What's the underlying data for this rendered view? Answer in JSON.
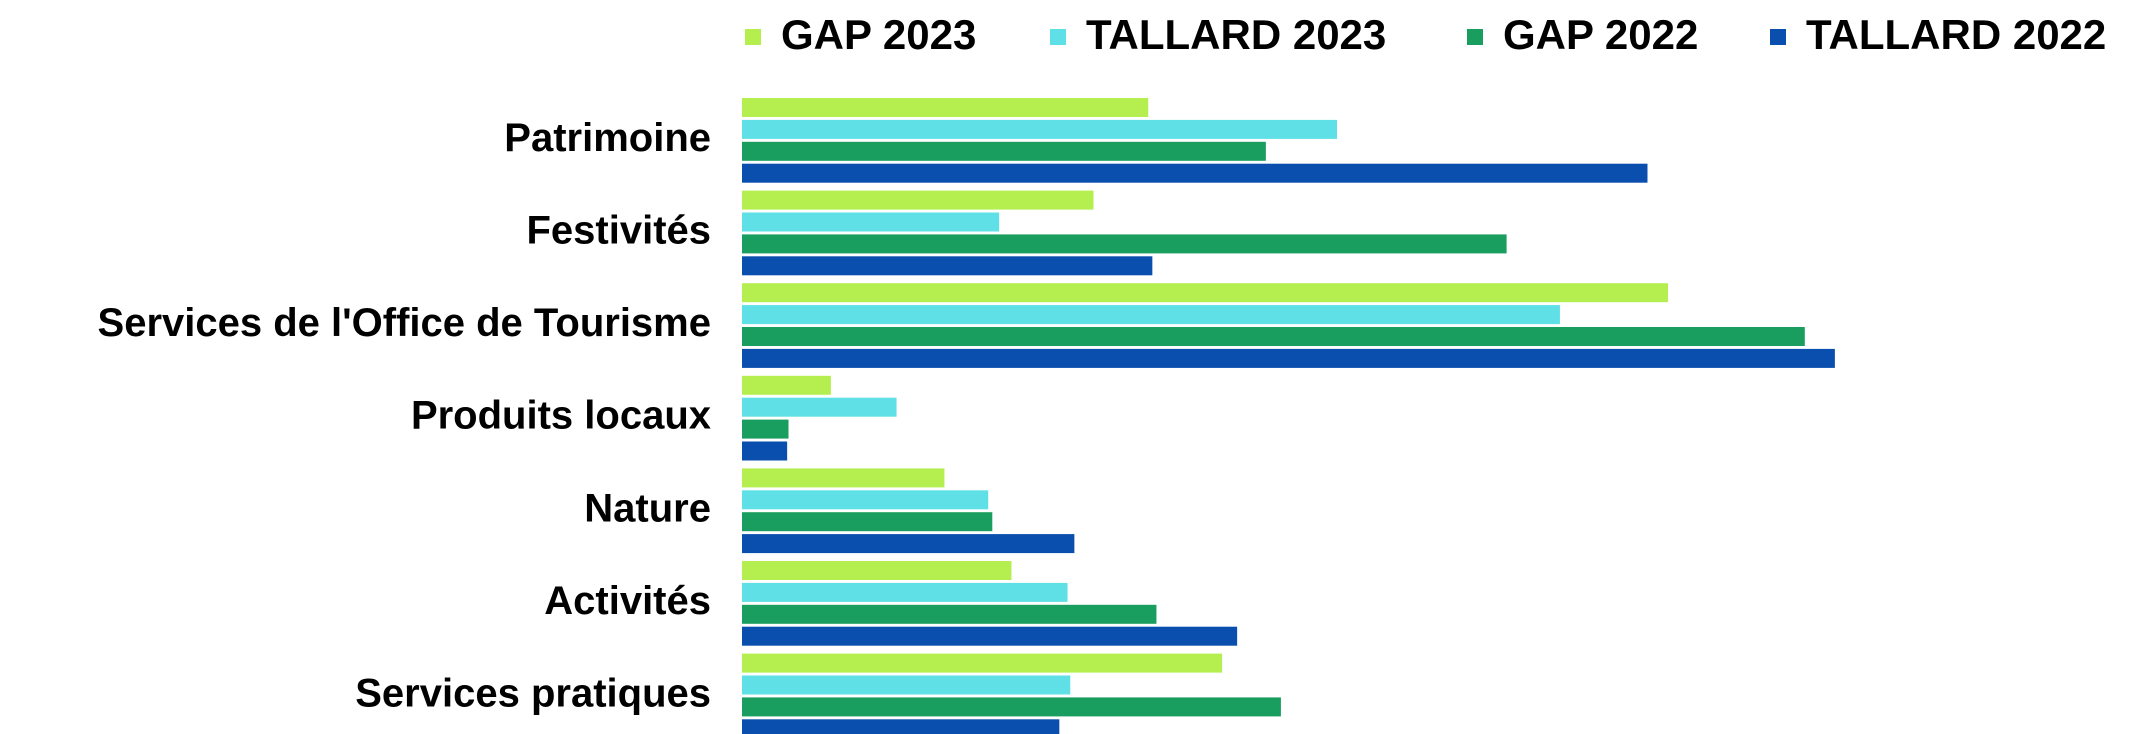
{
  "chart_data": {
    "type": "barh",
    "categories": [
      "Patrimoine",
      "Festivités",
      "Services de l'Office de Tourisme",
      "Produits locaux",
      "Nature",
      "Activités",
      "Services pratiques"
    ],
    "series": [
      {
        "name": "GAP 2023",
        "color": "#b5ef4f",
        "values": [
          297,
          257,
          677,
          65,
          148,
          197,
          351
        ]
      },
      {
        "name": "TALLARD 2023",
        "color": "#5fe0e6",
        "values": [
          435,
          188,
          598,
          113,
          180,
          238,
          240
        ]
      },
      {
        "name": "GAP 2022",
        "color": "#1a9e5f",
        "values": [
          383,
          559,
          777,
          34,
          183,
          303,
          394
        ]
      },
      {
        "name": "TALLARD 2022",
        "color": "#0a4fad",
        "values": [
          662,
          300,
          799,
          33,
          243,
          362,
          232
        ]
      }
    ],
    "xlim": [
      0,
      1025
    ],
    "legend": "top"
  }
}
